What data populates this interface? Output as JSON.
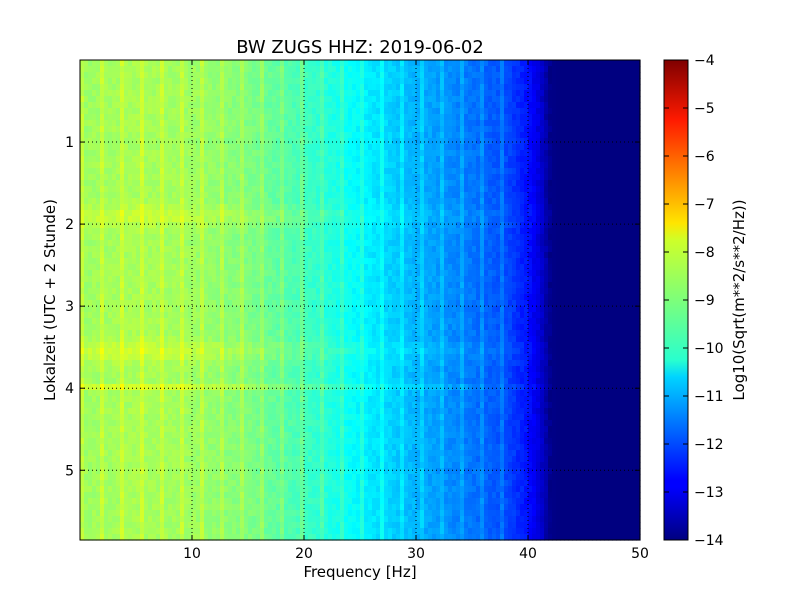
{
  "chart_data": {
    "type": "heatmap",
    "title": "BW ZUGS HHZ: 2019-06-02",
    "xlabel": "Frequency [Hz]",
    "ylabel": "Lokalzeit (UTC + 2 Stunde)",
    "colorbar_label": "Log10(Sqrt(m**2/s**2/Hz))",
    "colormap": "jet",
    "xlim": [
      0,
      50
    ],
    "ylim": [
      5.85,
      0
    ],
    "clim": [
      -14,
      -4
    ],
    "x_ticks": [
      10,
      20,
      30,
      40,
      50
    ],
    "y_ticks": [
      1,
      2,
      3,
      4,
      5
    ],
    "colorbar_ticks": [
      -4,
      -5,
      -6,
      -7,
      -8,
      -9,
      -10,
      -11,
      -12,
      -13,
      -14
    ],
    "grid": true,
    "spectral_profile": {
      "frequency_hz": [
        0.5,
        5,
        10,
        15,
        20,
        25,
        30,
        35,
        38,
        40,
        41,
        42,
        43,
        45,
        50
      ],
      "log10_amplitude": [
        -8.7,
        -8.6,
        -8.7,
        -9.0,
        -9.6,
        -10.3,
        -11.0,
        -11.6,
        -12.0,
        -12.6,
        -13.1,
        -13.9,
        -14.0,
        -14.0,
        -14.0
      ]
    },
    "notable_features": [
      {
        "time_h": 1.9,
        "delta": 0.35
      },
      {
        "time_h": 3.55,
        "delta": 0.4
      },
      {
        "time_h": 4.0,
        "delta": 0.6
      }
    ]
  }
}
